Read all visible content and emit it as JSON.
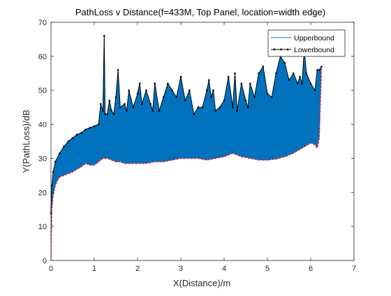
{
  "figure": {
    "background": "#ffffff",
    "axis_color": "#262626",
    "fill_color": "#0072bd",
    "lowerbound_color": "#000000",
    "dashed_red": "#ff0000"
  },
  "chart_data": {
    "type": "area",
    "title": "PathLoss v Distance(f=433M, Top Panel, location=width edge)",
    "xlabel": "X(Distance)/m",
    "ylabel": "Y(PathLoss)/dB",
    "xlim": [
      0,
      7
    ],
    "ylim": [
      0,
      70
    ],
    "xticks": [
      0,
      1,
      2,
      3,
      4,
      5,
      6,
      7
    ],
    "yticks": [
      0,
      10,
      20,
      30,
      40,
      50,
      60,
      70
    ],
    "grid": false,
    "legend_position": "top-right",
    "legend": [
      "Upperbound",
      "Lowerbound"
    ],
    "series": [
      {
        "name": "Upperbound",
        "style": "filled band, blue",
        "x": [
          0,
          0.02,
          0.05,
          0.1,
          0.2,
          0.3,
          0.4,
          0.5,
          0.6,
          0.7,
          0.8,
          0.9,
          1.0,
          1.1,
          1.15,
          1.2,
          1.23,
          1.25,
          1.3,
          1.35,
          1.4,
          1.45,
          1.5,
          1.55,
          1.6,
          1.7,
          1.75,
          1.8,
          1.9,
          2.0,
          2.05,
          2.1,
          2.2,
          2.3,
          2.35,
          2.4,
          2.5,
          2.6,
          2.7,
          2.8,
          2.9,
          3.0,
          3.1,
          3.2,
          3.3,
          3.4,
          3.5,
          3.6,
          3.65,
          3.7,
          3.75,
          3.8,
          3.9,
          4.0,
          4.1,
          4.2,
          4.25,
          4.3,
          4.4,
          4.5,
          4.55,
          4.6,
          4.7,
          4.8,
          4.9,
          5.0,
          5.1,
          5.2,
          5.3,
          5.4,
          5.5,
          5.6,
          5.7,
          5.75,
          5.8,
          5.85,
          5.9,
          6.0,
          6.1,
          6.15,
          6.2,
          6.25
        ],
        "y": [
          14,
          22,
          26,
          29,
          31.5,
          33.5,
          35,
          36,
          37,
          37.5,
          38.5,
          39,
          39.5,
          40,
          46,
          44,
          66,
          43,
          43,
          47,
          44,
          43,
          48,
          56,
          45,
          46,
          44,
          50,
          45,
          49,
          52,
          46,
          50,
          46,
          44,
          52,
          44,
          48,
          52,
          50,
          48,
          54,
          47,
          50,
          43,
          45,
          45,
          50,
          53,
          48,
          50,
          44,
          45,
          47,
          54,
          45,
          55,
          44,
          52,
          47,
          45,
          52,
          48,
          55,
          57,
          49,
          48,
          55,
          60,
          58,
          53,
          55,
          52,
          54,
          52,
          62,
          55,
          52,
          50,
          56,
          56,
          57
        ]
      },
      {
        "name": "Lowerbound",
        "style": "black line with dot markers",
        "x": [
          0,
          0.02,
          0.05,
          0.1,
          0.2,
          0.3,
          0.4,
          0.5,
          0.6,
          0.7,
          0.8,
          0.9,
          1.0,
          1.1,
          1.15,
          1.2,
          1.23,
          1.25,
          1.3,
          1.35,
          1.4,
          1.45,
          1.5,
          1.55,
          1.6,
          1.7,
          1.75,
          1.8,
          1.9,
          2.0,
          2.05,
          2.1,
          2.2,
          2.3,
          2.35,
          2.4,
          2.5,
          2.6,
          2.7,
          2.8,
          2.9,
          3.0,
          3.1,
          3.2,
          3.3,
          3.4,
          3.5,
          3.6,
          3.65,
          3.7,
          3.75,
          3.8,
          3.9,
          4.0,
          4.1,
          4.2,
          4.25,
          4.3,
          4.4,
          4.5,
          4.55,
          4.6,
          4.7,
          4.8,
          4.9,
          5.0,
          5.1,
          5.2,
          5.3,
          5.4,
          5.5,
          5.6,
          5.7,
          5.75,
          5.8,
          5.85,
          5.9,
          6.0,
          6.1,
          6.15,
          6.2,
          6.25
        ],
        "y": [
          14,
          22,
          26,
          29,
          31.5,
          33.5,
          35,
          36,
          37,
          37.5,
          38.5,
          39,
          39.5,
          40,
          46,
          44,
          66,
          43,
          43,
          47,
          44,
          43,
          48,
          56,
          45,
          46,
          44,
          50,
          45,
          49,
          52,
          46,
          50,
          46,
          44,
          52,
          44,
          48,
          52,
          50,
          48,
          54,
          47,
          50,
          43,
          45,
          45,
          50,
          53,
          48,
          50,
          44,
          45,
          47,
          54,
          45,
          55,
          44,
          52,
          47,
          45,
          52,
          48,
          55,
          57,
          49,
          48,
          55,
          60,
          58,
          53,
          55,
          52,
          54,
          52,
          62,
          55,
          52,
          50,
          56,
          56,
          57
        ]
      },
      {
        "name": "",
        "style": "lower edge of band, red dashed",
        "x": [
          0,
          0.02,
          0.05,
          0.1,
          0.15,
          0.2,
          0.3,
          0.4,
          0.5,
          0.6,
          0.7,
          0.8,
          0.9,
          1.0,
          1.1,
          1.2,
          1.3,
          1.4,
          1.5,
          1.6,
          1.7,
          1.8,
          1.9,
          2.0,
          2.2,
          2.4,
          2.6,
          2.8,
          3.0,
          3.2,
          3.4,
          3.6,
          3.8,
          4.0,
          4.2,
          4.4,
          4.6,
          4.8,
          5.0,
          5.2,
          5.4,
          5.6,
          5.8,
          6.0,
          6.1,
          6.15,
          6.2,
          6.25
        ],
        "y": [
          0,
          15,
          19,
          22,
          23.5,
          24.5,
          25,
          25.5,
          26,
          26.8,
          27.5,
          28.5,
          28,
          28,
          29,
          30,
          30,
          29.5,
          29,
          29,
          28.5,
          28.5,
          28.5,
          28.5,
          28.5,
          29,
          29,
          29.5,
          30,
          30,
          30,
          29.5,
          30,
          30.5,
          31.5,
          30.5,
          30,
          29.5,
          29.5,
          29.8,
          30.5,
          31.5,
          33,
          34.5,
          34,
          33,
          36,
          57
        ]
      }
    ]
  }
}
